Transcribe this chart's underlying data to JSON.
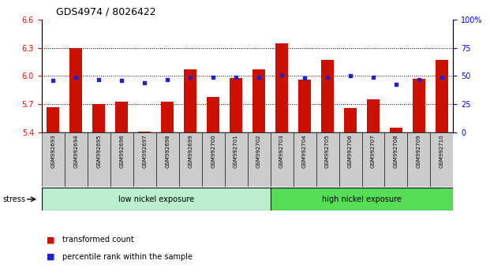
{
  "title": "GDS4974 / 8026422",
  "samples": [
    "GSM992693",
    "GSM992694",
    "GSM992695",
    "GSM992696",
    "GSM992697",
    "GSM992698",
    "GSM992699",
    "GSM992700",
    "GSM992701",
    "GSM992702",
    "GSM992703",
    "GSM992704",
    "GSM992705",
    "GSM992706",
    "GSM992707",
    "GSM992708",
    "GSM992709",
    "GSM992710"
  ],
  "transformed_count": [
    5.67,
    6.3,
    5.7,
    5.73,
    5.41,
    5.73,
    6.07,
    5.78,
    5.98,
    6.07,
    6.35,
    5.96,
    6.17,
    5.66,
    5.75,
    5.45,
    5.97,
    6.17
  ],
  "percentile_rank": [
    46,
    49,
    47,
    46,
    44,
    47,
    49,
    49,
    49,
    49,
    51,
    48,
    49,
    50,
    49,
    43,
    47,
    49
  ],
  "ylim_left": [
    5.4,
    6.6
  ],
  "ylim_right": [
    0,
    100
  ],
  "yticks_left": [
    5.4,
    5.7,
    6.0,
    6.3,
    6.6
  ],
  "yticks_right": [
    0,
    25,
    50,
    75,
    100
  ],
  "ytick_labels_right": [
    "0",
    "25",
    "50",
    "75",
    "100%"
  ],
  "grid_lines": [
    5.7,
    6.0,
    6.3
  ],
  "low_nickel_count": 10,
  "high_nickel_count": 8,
  "bar_color": "#cc1100",
  "dot_color": "#2222cc",
  "bg_color_low": "#bbeecc",
  "bg_color_high": "#55dd55",
  "tick_area_color": "#cccccc",
  "bar_bottom": 5.4,
  "legend_labels": [
    "transformed count",
    "percentile rank within the sample"
  ],
  "stress_label": "stress",
  "low_label": "low nickel exposure",
  "high_label": "high nickel exposure",
  "title_fontsize": 9,
  "axis_fontsize": 7,
  "label_fontsize": 7,
  "group_fontsize": 7,
  "legend_fontsize": 7
}
